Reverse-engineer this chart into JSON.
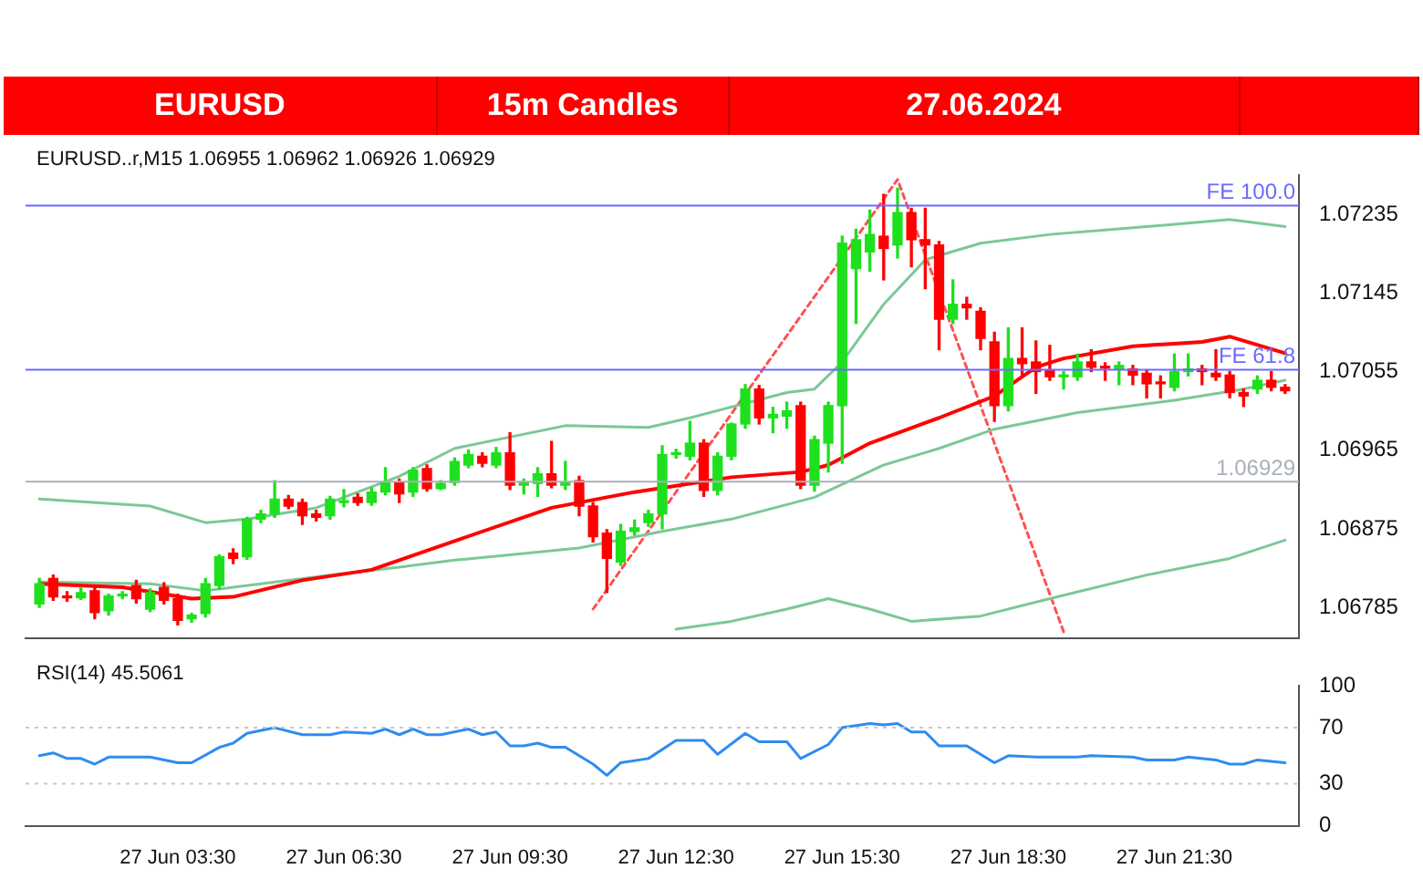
{
  "chart_data": [
    {
      "type": "candlestick",
      "title": "EURUSD",
      "subtitle": "15m Candles",
      "annotations": [
        "27.06.2024",
        "EURUSD..r,M15 1.06955 1.06962 1.06926 1.06929"
      ],
      "x": [
        "2024-06-27T01:00",
        "2024-06-27T01:15",
        "2024-06-27T01:30",
        "2024-06-27T01:45",
        "2024-06-27T02:00",
        "2024-06-27T02:15",
        "2024-06-27T02:30",
        "2024-06-27T02:45",
        "2024-06-27T03:00",
        "2024-06-27T03:15",
        "2024-06-27T03:30",
        "2024-06-27T03:45",
        "2024-06-27T04:00",
        "2024-06-27T04:15",
        "2024-06-27T04:30",
        "2024-06-27T04:45",
        "2024-06-27T05:00",
        "2024-06-27T05:15",
        "2024-06-27T05:30",
        "2024-06-27T05:45",
        "2024-06-27T06:00",
        "2024-06-27T06:15",
        "2024-06-27T06:30",
        "2024-06-27T06:45",
        "2024-06-27T07:00",
        "2024-06-27T07:15",
        "2024-06-27T07:30",
        "2024-06-27T07:45",
        "2024-06-27T08:00",
        "2024-06-27T08:15",
        "2024-06-27T08:30",
        "2024-06-27T08:45",
        "2024-06-27T09:00",
        "2024-06-27T09:15",
        "2024-06-27T09:30",
        "2024-06-27T09:45",
        "2024-06-27T10:00",
        "2024-06-27T10:15",
        "2024-06-27T10:30",
        "2024-06-27T10:45",
        "2024-06-27T11:00",
        "2024-06-27T11:15",
        "2024-06-27T11:30",
        "2024-06-27T11:45",
        "2024-06-27T12:00",
        "2024-06-27T12:15",
        "2024-06-27T12:30",
        "2024-06-27T12:45",
        "2024-06-27T13:00",
        "2024-06-27T13:15",
        "2024-06-27T13:30",
        "2024-06-27T13:45",
        "2024-06-27T14:00",
        "2024-06-27T14:15",
        "2024-06-27T14:30",
        "2024-06-27T14:45",
        "2024-06-27T15:00",
        "2024-06-27T15:15",
        "2024-06-27T15:30",
        "2024-06-27T15:45",
        "2024-06-27T16:00",
        "2024-06-27T16:15",
        "2024-06-27T16:30",
        "2024-06-27T16:45",
        "2024-06-27T17:00",
        "2024-06-27T17:15",
        "2024-06-27T17:30",
        "2024-06-27T17:45",
        "2024-06-27T18:00",
        "2024-06-27T18:15",
        "2024-06-27T18:30",
        "2024-06-27T18:45",
        "2024-06-27T19:00",
        "2024-06-27T19:15",
        "2024-06-27T19:30",
        "2024-06-27T19:45",
        "2024-06-27T20:00",
        "2024-06-27T20:15",
        "2024-06-27T20:30",
        "2024-06-27T20:45",
        "2024-06-27T21:00",
        "2024-06-27T21:15",
        "2024-06-27T21:30",
        "2024-06-27T21:45",
        "2024-06-27T22:00",
        "2024-06-27T22:15",
        "2024-06-27T22:30",
        "2024-06-27T22:45",
        "2024-06-27T23:00",
        "2024-06-27T23:15",
        "2024-06-27T23:30"
      ],
      "ohlc": [
        [
          1.06789,
          1.06818,
          1.06785,
          1.06812
        ],
        [
          1.06818,
          1.06822,
          1.06793,
          1.06797
        ],
        [
          1.06797,
          1.06803,
          1.06792,
          1.06796
        ],
        [
          1.06796,
          1.06808,
          1.06794,
          1.06802
        ],
        [
          1.06804,
          1.0681,
          1.06772,
          1.06779
        ],
        [
          1.06781,
          1.068,
          1.06776,
          1.06798
        ],
        [
          1.06798,
          1.06803,
          1.06795,
          1.068
        ],
        [
          1.0681,
          1.06816,
          1.0679,
          1.06795
        ],
        [
          1.06783,
          1.06806,
          1.0678,
          1.06802
        ],
        [
          1.06808,
          1.06813,
          1.06789,
          1.06793
        ],
        [
          1.06795,
          1.068,
          1.06765,
          1.0677
        ],
        [
          1.06772,
          1.06778,
          1.06768,
          1.06776
        ],
        [
          1.06778,
          1.06818,
          1.06774,
          1.06812
        ],
        [
          1.0681,
          1.06845,
          1.06806,
          1.06843
        ],
        [
          1.06847,
          1.06852,
          1.06835,
          1.06841
        ],
        [
          1.06843,
          1.06888,
          1.0684,
          1.06886
        ],
        [
          1.06886,
          1.06896,
          1.06882,
          1.06892
        ],
        [
          1.06892,
          1.0693,
          1.06888,
          1.06909
        ],
        [
          1.06909,
          1.06913,
          1.06898,
          1.06901
        ],
        [
          1.06905,
          1.06909,
          1.0688,
          1.0689
        ],
        [
          1.06892,
          1.06896,
          1.06884,
          1.06888
        ],
        [
          1.0689,
          1.06912,
          1.06886,
          1.06909
        ],
        [
          1.06905,
          1.0692,
          1.069,
          1.06906
        ],
        [
          1.06911,
          1.06915,
          1.06902,
          1.06905
        ],
        [
          1.06905,
          1.06922,
          1.06902,
          1.06917
        ],
        [
          1.06917,
          1.06945,
          1.06914,
          1.06928
        ],
        [
          1.06928,
          1.06932,
          1.06905,
          1.06915
        ],
        [
          1.06917,
          1.06945,
          1.06912,
          1.06942
        ],
        [
          1.06944,
          1.06948,
          1.06918,
          1.06921
        ],
        [
          1.06921,
          1.0693,
          1.0692,
          1.06927
        ],
        [
          1.06928,
          1.06956,
          1.06925,
          1.06952
        ],
        [
          1.06948,
          1.06965,
          1.06945,
          1.0696
        ],
        [
          1.06958,
          1.06962,
          1.06946,
          1.0695
        ],
        [
          1.06948,
          1.06968,
          1.06945,
          1.06962
        ],
        [
          1.06962,
          1.06985,
          1.0692,
          1.06925
        ],
        [
          1.06925,
          1.06932,
          1.06915,
          1.06928
        ],
        [
          1.06927,
          1.06945,
          1.06912,
          1.06938
        ],
        [
          1.06938,
          1.06975,
          1.06922,
          1.06925
        ],
        [
          1.06925,
          1.06952,
          1.0692,
          1.06928
        ],
        [
          1.0693,
          1.06935,
          1.0689,
          1.06901
        ],
        [
          1.06901,
          1.06905,
          1.0686,
          1.06866
        ],
        [
          1.0687,
          1.06874,
          1.06802,
          1.06841
        ],
        [
          1.06837,
          1.0688,
          1.06833,
          1.06872
        ],
        [
          1.06872,
          1.06885,
          1.06868,
          1.06876
        ],
        [
          1.06882,
          1.06896,
          1.06878,
          1.06892
        ],
        [
          1.06892,
          1.0697,
          1.06875,
          1.0696
        ],
        [
          1.0696,
          1.06966,
          1.06956,
          1.06962
        ],
        [
          1.06958,
          1.06998,
          1.06954,
          1.06973
        ],
        [
          1.06973,
          1.06977,
          1.06912,
          1.06919
        ],
        [
          1.06919,
          1.06962,
          1.06914,
          1.06958
        ],
        [
          1.06958,
          1.06996,
          1.06954,
          1.06995
        ],
        [
          1.06995,
          1.0704,
          1.0699,
          1.07035
        ],
        [
          1.07035,
          1.07039,
          1.06995,
          1.07002
        ],
        [
          1.07002,
          1.07014,
          1.06985,
          1.07006
        ],
        [
          1.07004,
          1.0702,
          1.0699,
          1.0701
        ],
        [
          1.07016,
          1.0702,
          1.06921,
          1.06925
        ],
        [
          1.06925,
          1.06981,
          1.06918,
          1.06977
        ],
        [
          1.06973,
          1.0702,
          1.0694,
          1.07016
        ],
        [
          1.07016,
          1.0721,
          1.0695,
          1.07202
        ],
        [
          1.07173,
          1.07218,
          1.0711,
          1.07206
        ],
        [
          1.07192,
          1.0724,
          1.0717,
          1.07212
        ],
        [
          1.0721,
          1.07258,
          1.0716,
          1.07196
        ],
        [
          1.072,
          1.07265,
          1.07185,
          1.07237
        ],
        [
          1.07237,
          1.07242,
          1.07175,
          1.07206
        ],
        [
          1.07206,
          1.07242,
          1.0715,
          1.072
        ],
        [
          1.072,
          1.07204,
          1.0708,
          1.07115
        ],
        [
          1.07115,
          1.0716,
          1.0711,
          1.07132
        ],
        [
          1.07132,
          1.0714,
          1.07115,
          1.07128
        ],
        [
          1.07124,
          1.07128,
          1.0708,
          1.07093
        ],
        [
          1.07089,
          1.071,
          1.06998,
          1.07016
        ],
        [
          1.07016,
          1.07105,
          1.0701,
          1.0707
        ],
        [
          1.0707,
          1.07105,
          1.0705,
          1.07064
        ],
        [
          1.07066,
          1.0709,
          1.0703,
          1.07055
        ],
        [
          1.07057,
          1.07085,
          1.07045,
          1.07049
        ],
        [
          1.07049,
          1.07055,
          1.07035,
          1.07051
        ],
        [
          1.07049,
          1.07075,
          1.07045,
          1.07066
        ],
        [
          1.07066,
          1.0708,
          1.07055,
          1.0706
        ],
        [
          1.0706,
          1.07065,
          1.07045,
          1.07059
        ],
        [
          1.07058,
          1.07066,
          1.0704,
          1.07062
        ],
        [
          1.07058,
          1.07062,
          1.0704,
          1.07051
        ],
        [
          1.07053,
          1.07057,
          1.07025,
          1.07041
        ],
        [
          1.07043,
          1.0705,
          1.07025,
          1.07041
        ],
        [
          1.07037,
          1.07075,
          1.07033,
          1.07055
        ],
        [
          1.07055,
          1.07075,
          1.0705,
          1.07058
        ],
        [
          1.07058,
          1.07062,
          1.0704,
          1.07055
        ],
        [
          1.07053,
          1.0708,
          1.07045,
          1.07049
        ],
        [
          1.07051,
          1.07055,
          1.07025,
          1.07031
        ],
        [
          1.07031,
          1.07035,
          1.07015,
          1.07027
        ],
        [
          1.07035,
          1.0705,
          1.0703,
          1.07045
        ],
        [
          1.07045,
          1.07055,
          1.07033,
          1.07037
        ],
        [
          1.07037,
          1.0704,
          1.0703,
          1.07033
        ]
      ],
      "colors": [
        "#1ee01e",
        "#ff0000",
        "#ff0000",
        "#1ee01e",
        "#ff0000",
        "#1ee01e",
        "#1ee01e",
        "#ff0000",
        "#1ee01e",
        "#ff0000",
        "#ff0000",
        "#1ee01e",
        "#1ee01e",
        "#1ee01e",
        "#ff0000",
        "#1ee01e",
        "#1ee01e",
        "#1ee01e",
        "#ff0000",
        "#ff0000",
        "#ff0000",
        "#1ee01e",
        "#1ee01e",
        "#ff0000",
        "#1ee01e",
        "#1ee01e",
        "#ff0000",
        "#1ee01e",
        "#ff0000",
        "#1ee01e",
        "#1ee01e",
        "#1ee01e",
        "#ff0000",
        "#1ee01e",
        "#ff0000",
        "#1ee01e",
        "#1ee01e",
        "#ff0000",
        "#1ee01e",
        "#ff0000",
        "#ff0000",
        "#ff0000",
        "#1ee01e",
        "#1ee01e",
        "#1ee01e",
        "#1ee01e",
        "#1ee01e",
        "#1ee01e",
        "#ff0000",
        "#1ee01e",
        "#1ee01e",
        "#1ee01e",
        "#ff0000",
        "#1ee01e",
        "#1ee01e",
        "#ff0000",
        "#1ee01e",
        "#1ee01e",
        "#1ee01e",
        "#1ee01e",
        "#1ee01e",
        "#ff0000",
        "#1ee01e",
        "#ff0000",
        "#ff0000",
        "#ff0000",
        "#1ee01e",
        "#ff0000",
        "#ff0000",
        "#ff0000",
        "#1ee01e",
        "#ff0000",
        "#ff0000",
        "#ff0000",
        "#1ee01e",
        "#1ee01e",
        "#ff0000",
        "#ff0000",
        "#1ee01e",
        "#ff0000",
        "#ff0000",
        "#ff0000",
        "#1ee01e",
        "#1ee01e",
        "#ff0000",
        "#ff0000",
        "#ff0000",
        "#ff0000",
        "#1ee01e",
        "#ff0000",
        "#ff0000"
      ],
      "series": [
        {
          "type": "line",
          "color": "#ff0000",
          "x": [
            "2024-06-27T01:00",
            "2024-06-27T02:30",
            "2024-06-27T03:45",
            "2024-06-27T04:30",
            "2024-06-27T05:45",
            "2024-06-27T07:00",
            "2024-06-27T08:30",
            "2024-06-27T10:15",
            "2024-06-27T11:45",
            "2024-06-27T13:30",
            "2024-06-27T14:45",
            "2024-06-27T15:15",
            "2024-06-27T16:00",
            "2024-06-27T17:15",
            "2024-06-27T18:15",
            "2024-06-27T19:00",
            "2024-06-27T19:30",
            "2024-06-27T20:45",
            "2024-06-27T22:00",
            "2024-06-27T22:30",
            "2024-06-27T23:30"
          ],
          "values": [
            1.06812,
            1.06808,
            1.06795,
            1.06797,
            1.06816,
            1.06828,
            1.06861,
            1.06899,
            1.06917,
            1.06934,
            1.0694,
            1.06948,
            1.06973,
            1.07002,
            1.07027,
            1.0706,
            1.0707,
            1.07084,
            1.07089,
            1.07095,
            1.07076
          ]
        },
        {
          "type": "line",
          "color": "#7cc896",
          "x": [
            "2024-06-27T01:00",
            "2024-06-27T03:00",
            "2024-06-27T04:00",
            "2024-06-27T04:45",
            "2024-06-27T06:00",
            "2024-06-27T07:30",
            "2024-06-27T08:30",
            "2024-06-27T10:30",
            "2024-06-27T12:00",
            "2024-06-27T12:45",
            "2024-06-27T14:30",
            "2024-06-27T15:00",
            "2024-06-27T15:30",
            "2024-06-27T16:15",
            "2024-06-27T17:00",
            "2024-06-27T18:00",
            "2024-06-27T19:15",
            "2024-06-27T21:00",
            "2024-06-27T22:30",
            "2024-06-27T23:30"
          ],
          "values": [
            1.06909,
            1.06901,
            1.06882,
            1.06886,
            1.06899,
            1.06935,
            1.06967,
            1.06993,
            1.06991,
            1.07002,
            1.07031,
            1.07035,
            1.07066,
            1.07132,
            1.07183,
            1.07202,
            1.07212,
            1.07221,
            1.07229,
            1.07221
          ]
        },
        {
          "type": "line",
          "color": "#7cc896",
          "x": [
            "2024-06-27T01:00",
            "2024-06-27T03:00",
            "2024-06-27T04:00",
            "2024-06-27T05:00",
            "2024-06-27T06:15",
            "2024-06-27T07:30",
            "2024-06-27T08:30",
            "2024-06-27T10:45",
            "2024-06-27T12:15",
            "2024-06-27T13:30",
            "2024-06-27T15:00",
            "2024-06-27T16:15",
            "2024-06-27T17:15",
            "2024-06-27T18:15",
            "2024-06-27T19:45",
            "2024-06-27T21:30",
            "2024-06-27T22:45",
            "2024-06-27T23:30"
          ],
          "values": [
            1.06814,
            1.06812,
            1.06804,
            1.06812,
            1.06822,
            1.06831,
            1.06839,
            1.06853,
            1.06872,
            1.06886,
            1.06911,
            1.06948,
            1.06967,
            1.06989,
            1.07008,
            1.07022,
            1.07035,
            1.07045
          ]
        },
        {
          "type": "line",
          "color": "#7cc896",
          "x": [
            "2024-06-27T12:30",
            "2024-06-27T13:30",
            "2024-06-27T14:30",
            "2024-06-27T15:15",
            "2024-06-27T16:00",
            "2024-06-27T16:45",
            "2024-06-27T18:00",
            "2024-06-27T19:15",
            "2024-06-27T21:00",
            "2024-06-27T22:30",
            "2024-06-27T23:30"
          ],
          "values": [
            1.0676,
            1.06769,
            1.06783,
            1.06795,
            1.06783,
            1.06769,
            1.06775,
            1.06795,
            1.06822,
            1.06841,
            1.06862
          ]
        },
        {
          "type": "line",
          "color": "#ff5050",
          "line_style": "dashed",
          "x": [
            "2024-06-27T11:00",
            "2024-06-27T16:30",
            "2024-06-27T19:30"
          ],
          "values": [
            1.06783,
            1.07275,
            1.06757
          ]
        }
      ],
      "ref_lines": [
        {
          "axis": "y",
          "value": 1.07245,
          "label": "FE 100.0",
          "color": "#6a6aff"
        },
        {
          "axis": "y",
          "value": 1.07057,
          "label": "FE 61.8",
          "color": "#6a6aff"
        },
        {
          "axis": "y",
          "value": 1.06929,
          "label": "1.06929",
          "color": "#a8b0bc"
        }
      ],
      "xlim": [
        "2024-06-27T00:45",
        "2024-06-27T23:45"
      ],
      "ylim": [
        1.0675,
        1.0728
      ],
      "yticks": [
        1.06785,
        1.06875,
        1.06965,
        1.07055,
        1.07145,
        1.07235
      ],
      "tick_labels": "y",
      "marker": "none"
    },
    {
      "type": "line",
      "title": "RSI(14) 45.5061",
      "marker": "none",
      "series": [
        {
          "color": "#2f8cf0",
          "x": [
            "2024-06-27T01:00",
            "2024-06-27T01:15",
            "2024-06-27T01:30",
            "2024-06-27T01:45",
            "2024-06-27T02:00",
            "2024-06-27T02:15",
            "2024-06-27T03:00",
            "2024-06-27T03:30",
            "2024-06-27T03:45",
            "2024-06-27T04:15",
            "2024-06-27T04:30",
            "2024-06-27T04:45",
            "2024-06-27T05:15",
            "2024-06-27T05:45",
            "2024-06-27T06:15",
            "2024-06-27T06:30",
            "2024-06-27T07:00",
            "2024-06-27T07:15",
            "2024-06-27T07:30",
            "2024-06-27T07:45",
            "2024-06-27T08:00",
            "2024-06-27T08:15",
            "2024-06-27T08:45",
            "2024-06-27T09:00",
            "2024-06-27T09:15",
            "2024-06-27T09:30",
            "2024-06-27T09:45",
            "2024-06-27T10:00",
            "2024-06-27T10:15",
            "2024-06-27T10:30",
            "2024-06-27T11:00",
            "2024-06-27T11:15",
            "2024-06-27T11:30",
            "2024-06-27T12:00",
            "2024-06-27T12:30",
            "2024-06-27T13:00",
            "2024-06-27T13:15",
            "2024-06-27T13:45",
            "2024-06-27T14:00",
            "2024-06-27T14:30",
            "2024-06-27T14:45",
            "2024-06-27T15:15",
            "2024-06-27T15:30",
            "2024-06-27T16:00",
            "2024-06-27T16:15",
            "2024-06-27T16:30",
            "2024-06-27T16:45",
            "2024-06-27T17:00",
            "2024-06-27T17:15",
            "2024-06-27T17:45",
            "2024-06-27T18:15",
            "2024-06-27T18:30",
            "2024-06-27T19:00",
            "2024-06-27T19:45",
            "2024-06-27T20:00",
            "2024-06-27T20:45",
            "2024-06-27T21:00",
            "2024-06-27T21:30",
            "2024-06-27T21:45",
            "2024-06-27T22:15",
            "2024-06-27T22:30",
            "2024-06-27T22:45",
            "2024-06-27T23:00",
            "2024-06-27T23:30"
          ],
          "values": [
            50,
            52,
            48,
            48,
            44,
            49,
            49,
            45,
            45,
            56,
            59,
            66,
            70,
            65,
            65,
            67,
            66,
            69,
            65,
            69,
            65,
            65,
            69,
            65,
            67,
            57,
            57,
            59,
            56,
            56,
            44,
            36,
            45,
            48,
            61,
            61,
            51,
            66,
            60,
            60,
            48,
            58,
            70,
            73,
            72,
            73,
            67,
            67,
            57,
            57,
            45,
            50,
            49,
            49,
            50,
            49,
            47,
            47,
            49,
            47,
            44,
            44,
            47,
            45
          ]
        }
      ],
      "ref_lines": [
        {
          "axis": "y",
          "value": 70,
          "color": "#c8c8c8",
          "line_style": "dotted"
        },
        {
          "axis": "y",
          "value": 30,
          "color": "#c8c8c8",
          "line_style": "dotted"
        }
      ],
      "xlim": [
        "2024-06-27T00:45",
        "2024-06-27T23:45"
      ],
      "xticks": [
        {
          "value": "2024-06-27T03:30",
          "label": "27 Jun 03:30"
        },
        {
          "value": "2024-06-27T06:30",
          "label": "27 Jun 06:30"
        },
        {
          "value": "2024-06-27T09:30",
          "label": "27 Jun 09:30"
        },
        {
          "value": "2024-06-27T12:30",
          "label": "27 Jun 12:30"
        },
        {
          "value": "2024-06-27T15:30",
          "label": "27 Jun 15:30"
        },
        {
          "value": "2024-06-27T18:30",
          "label": "27 Jun 18:30"
        },
        {
          "value": "2024-06-27T21:30",
          "label": "27 Jun 21:30"
        }
      ],
      "ylim": [
        0,
        100
      ],
      "yticks": [
        0,
        30,
        70,
        100
      ]
    }
  ]
}
